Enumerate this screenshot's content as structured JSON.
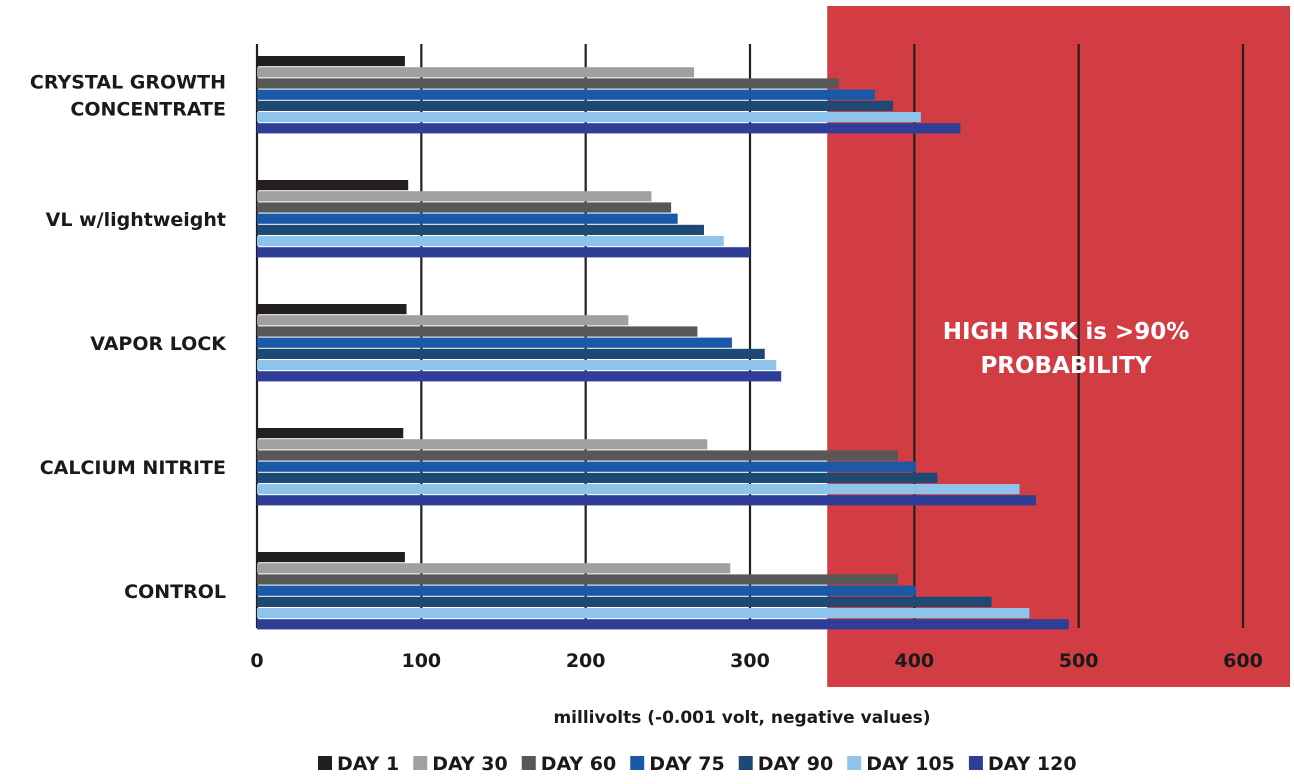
{
  "chart_data": {
    "type": "bar",
    "orientation": "horizontal",
    "categories": [
      "CRYSTAL GROWTH CONCENTRATE",
      "VL w/lightweight",
      "VAPOR LOCK",
      "CALCIUM NITRITE",
      "CONTROL"
    ],
    "category_lines": [
      [
        "CRYSTAL GROWTH",
        "CONCENTRATE"
      ],
      [
        "VL w/lightweight"
      ],
      [
        "VAPOR LOCK"
      ],
      [
        "CALCIUM NITRITE"
      ],
      [
        "CONTROL"
      ]
    ],
    "series": [
      {
        "name": "DAY 1",
        "color": "#231f20",
        "values": [
          90,
          92,
          91,
          89,
          90
        ]
      },
      {
        "name": "DAY 30",
        "color": "#a0a0a0",
        "values": [
          266,
          240,
          226,
          274,
          288
        ]
      },
      {
        "name": "DAY 60",
        "color": "#575757",
        "values": [
          354,
          252,
          268,
          390,
          390
        ]
      },
      {
        "name": "DAY 75",
        "color": "#1a58a8",
        "values": [
          376,
          256,
          289,
          401,
          401
        ]
      },
      {
        "name": "DAY 90",
        "color": "#1c4a75",
        "values": [
          387,
          272,
          309,
          414,
          447
        ]
      },
      {
        "name": "DAY 105",
        "color": "#8fc3ea",
        "values": [
          404,
          284,
          316,
          464,
          470
        ]
      },
      {
        "name": "DAY 120",
        "color": "#2e3d96",
        "values": [
          428,
          300,
          319,
          474,
          494
        ]
      }
    ],
    "xticks": [
      0,
      100,
      200,
      300,
      400,
      500,
      600
    ],
    "xlim": [
      0,
      600
    ],
    "xlabel": "millivolts (-0.001 volt, negative values)",
    "ylabel": "",
    "grid": true,
    "legend_position": "bottom",
    "risk_zone": {
      "from": 347,
      "color": "#d23c43",
      "label_lines": [
        "HIGH RISK is >90%",
        "PROBABILITY"
      ]
    }
  }
}
